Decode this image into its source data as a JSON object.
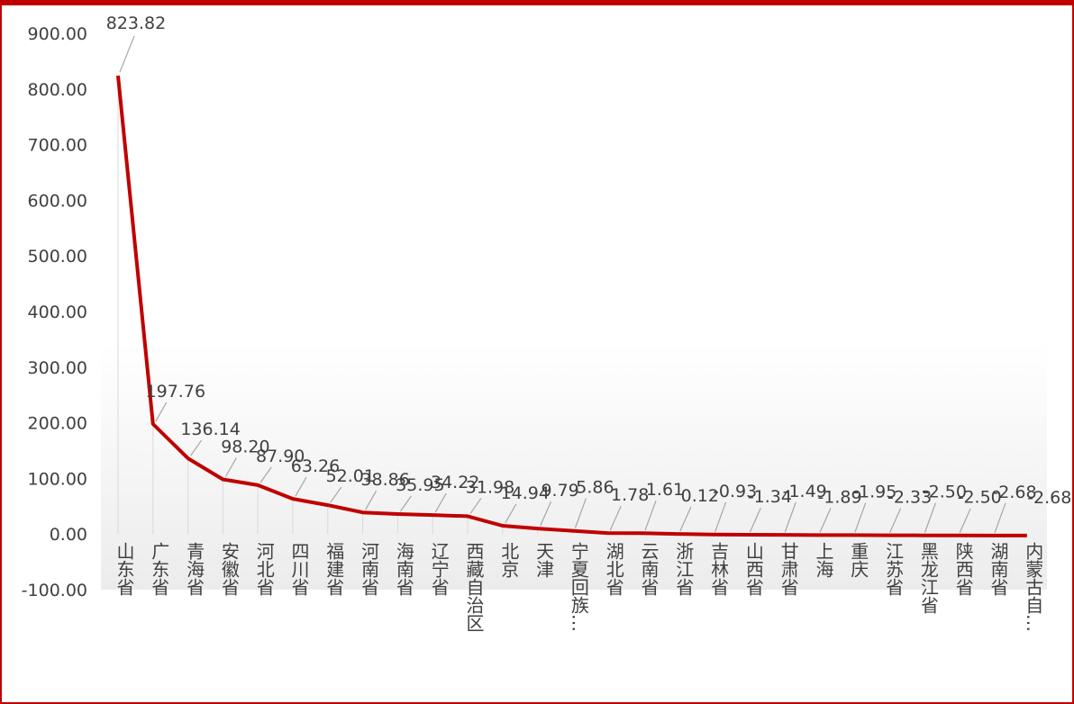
{
  "colors": {
    "line": "#c00000",
    "frame": "#c00000",
    "text": "#404040",
    "leader": "#a6a6a6",
    "droplines": "#d9d9d9"
  },
  "chart_data": {
    "type": "line",
    "title": "",
    "xlabel": "",
    "ylabel": "",
    "ylim": [
      -100,
      900
    ],
    "ytick_labels": [
      "-100.00",
      "0.00",
      "100.00",
      "200.00",
      "300.00",
      "400.00",
      "500.00",
      "600.00",
      "700.00",
      "800.00",
      "900.00"
    ],
    "grid": false,
    "legend": "none",
    "categories": [
      "山东省",
      "广东省",
      "青海省",
      "安徽省",
      "河北省",
      "四川省",
      "福建省",
      "河南省",
      "海南省",
      "辽宁省",
      "西藏自治区",
      "北京",
      "天津",
      "宁夏回族…",
      "湖北省",
      "云南省",
      "浙江省",
      "吉林省",
      "山西省",
      "甘肃省",
      "上海",
      "重庆",
      "江苏省",
      "黑龙江省",
      "陕西省",
      "湖南省",
      "内蒙古自…"
    ],
    "values": [
      823.82,
      197.76,
      136.14,
      98.2,
      87.9,
      63.26,
      52.01,
      38.86,
      35.95,
      34.22,
      31.98,
      14.94,
      9.79,
      5.86,
      1.78,
      1.61,
      0.12,
      -0.93,
      -1.34,
      -1.49,
      -1.89,
      -1.95,
      -2.33,
      -2.5,
      -2.5,
      -2.68,
      -2.68
    ],
    "data_labels": [
      "823.82",
      "197.76",
      "136.14",
      "98.20",
      "87.90",
      "63.26",
      "52.01",
      "38.86",
      "35.95",
      "34.22",
      "31.98",
      "14.94",
      "9.79",
      "5.86",
      "1.78",
      "1.61",
      "0.12",
      "-0.93",
      "-1.34",
      "-1.49",
      "-1.89",
      "-1.95",
      "-2.33",
      "-2.50",
      "-2.50",
      "-2.68",
      "-2.68"
    ]
  }
}
